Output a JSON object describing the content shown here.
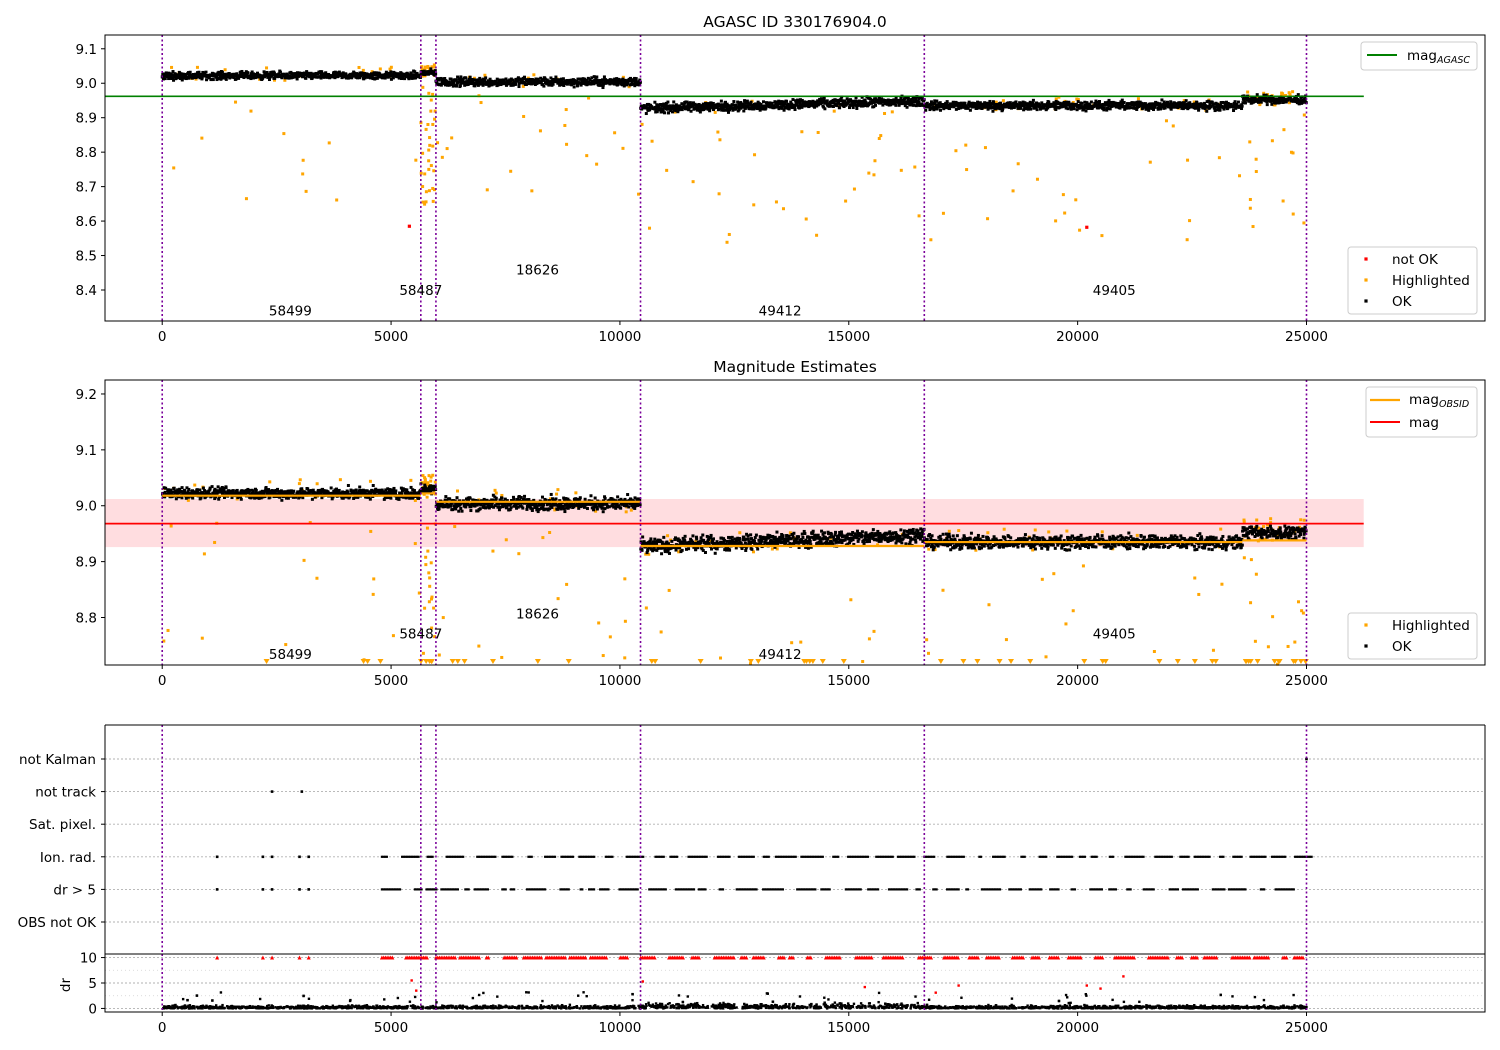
{
  "chart_data": [
    {
      "type": "scatter",
      "title": "AGASC ID 330176904.0",
      "xlim": [
        -1250,
        28900
      ],
      "ylim": [
        8.31,
        9.14
      ],
      "xticks": [
        0,
        5000,
        10000,
        15000,
        20000,
        25000
      ],
      "yticks": [
        8.4,
        8.5,
        8.6,
        8.7,
        8.8,
        8.9,
        9.0,
        9.1
      ],
      "grid": false,
      "reference_line": {
        "name": "mag",
        "subscript": "AGASC",
        "y": 8.962,
        "x_range": [
          -1250,
          26250
        ],
        "color": "#008000"
      },
      "obsid_boundaries": [
        0,
        5650,
        5980,
        10450,
        16650,
        25000
      ],
      "obsid_labels": [
        {
          "text": "58499",
          "x": 2800,
          "y": 8.34
        },
        {
          "text": "58487",
          "x": 5650,
          "y": 8.4
        },
        {
          "text": "18626",
          "x": 8200,
          "y": 8.46
        },
        {
          "text": "49412",
          "x": 13500,
          "y": 8.34
        },
        {
          "text": "49405",
          "x": 20800,
          "y": 8.4
        }
      ],
      "segments": [
        {
          "x": [
            0,
            5650
          ],
          "level": 9.022,
          "spread": 0.009
        },
        {
          "x": [
            5650,
            5980
          ],
          "level": 9.03,
          "spread": 0.008
        },
        {
          "x": [
            5980,
            10450
          ],
          "level": 9.004,
          "spread": 0.011
        },
        {
          "x": [
            10450,
            16650
          ],
          "level": 8.927,
          "spread": 0.012,
          "end_level": 8.948
        },
        {
          "x": [
            16650,
            23600
          ],
          "level": 8.935,
          "spread": 0.011
        },
        {
          "x": [
            23600,
            25000
          ],
          "level": 8.952,
          "spread": 0.01
        }
      ],
      "not_ok_points": [
        [
          5400,
          8.585
        ],
        [
          20200,
          8.582
        ]
      ],
      "legend_top": {
        "position": "top-right",
        "entries": [
          {
            "label": "mag",
            "subscript": "AGASC",
            "color": "#008000"
          }
        ]
      },
      "legend_bottom": {
        "position": "lower-right",
        "entries": [
          {
            "label": "not OK",
            "color": "#ff0000"
          },
          {
            "label": "Highlighted",
            "color": "#ffa500"
          },
          {
            "label": "OK",
            "color": "#000000"
          }
        ]
      }
    },
    {
      "type": "scatter",
      "title": "Magnitude Estimates",
      "xlim": [
        -1250,
        28900
      ],
      "ylim": [
        8.715,
        9.225
      ],
      "xticks": [
        0,
        5000,
        10000,
        15000,
        20000,
        25000
      ],
      "yticks": [
        8.8,
        8.9,
        9.0,
        9.1,
        9.2
      ],
      "grid": false,
      "mag_line": {
        "name": "mag",
        "y": 8.968,
        "band": [
          8.926,
          9.012
        ],
        "x_range": [
          -1250,
          26250
        ],
        "color": "#ff0000"
      },
      "obsid_mags": [
        {
          "x": [
            0,
            5650
          ],
          "y": 9.018
        },
        {
          "x": [
            5650,
            5980
          ],
          "y": 9.022
        },
        {
          "x": [
            5980,
            10450
          ],
          "y": 9.007
        },
        {
          "x": [
            10450,
            16650
          ],
          "y": 8.928
        },
        {
          "x": [
            16650,
            23600
          ],
          "y": 8.935
        },
        {
          "x": [
            23600,
            25000
          ],
          "y": 8.938
        }
      ],
      "obsid_boundaries": [
        0,
        5650,
        5980,
        10450,
        16650,
        25000
      ],
      "obsid_labels": [
        {
          "text": "58499",
          "x": 2800,
          "y": 8.735
        },
        {
          "text": "58487",
          "x": 5650,
          "y": 8.771
        },
        {
          "text": "18626",
          "x": 8200,
          "y": 8.807
        },
        {
          "text": "49412",
          "x": 13500,
          "y": 8.735
        },
        {
          "text": "49405",
          "x": 20800,
          "y": 8.771
        }
      ],
      "legend_top": {
        "position": "top-right",
        "entries": [
          {
            "label": "mag",
            "subscript": "OBSID",
            "color": "#ffa500"
          },
          {
            "label": "mag",
            "color": "#ff0000"
          }
        ]
      },
      "legend_bottom": {
        "position": "lower-right",
        "entries": [
          {
            "label": "Highlighted",
            "color": "#ffa500"
          },
          {
            "label": "OK",
            "color": "#000000"
          }
        ]
      }
    },
    {
      "type": "scatter",
      "title": "",
      "xlim": [
        -1250,
        28900
      ],
      "categories": [
        "not Kalman",
        "not track",
        "Sat. pixel.",
        "Ion. rad.",
        "dr > 5",
        "OBS not OK"
      ],
      "category_points": {
        "not Kalman": [
          25000
        ],
        "not track": [
          2400,
          3050
        ],
        "Sat. pixel.": [],
        "Ion. rad.": [
          1200,
          2200,
          2400,
          3000,
          3200
        ],
        "dr > 5": [
          1200,
          2200,
          2400,
          3000,
          3200
        ],
        "OBS not OK": []
      },
      "ion_density_start": 4800,
      "obsid_boundaries": [
        0,
        5650,
        5980,
        10450,
        16650,
        25000
      ],
      "grid": "dotted horizontal"
    },
    {
      "type": "scatter",
      "title": "",
      "ylabel": "dr",
      "xlim": [
        -1250,
        28900
      ],
      "ylim": [
        -0.7,
        10.7
      ],
      "xticks": [
        0,
        5000,
        10000,
        15000,
        20000,
        25000
      ],
      "yticks": [
        0,
        5,
        10
      ],
      "clip_value": 10,
      "red_outliers": [
        [
          5450,
          5.5
        ],
        [
          5550,
          3.5
        ],
        [
          10500,
          5.3
        ],
        [
          15350,
          4.2
        ],
        [
          17400,
          4.5
        ],
        [
          20200,
          4.5
        ],
        [
          20500,
          3.9
        ],
        [
          21000,
          6.3
        ],
        [
          16900,
          3.1
        ]
      ],
      "obsid_boundaries": [
        0,
        5650,
        5980,
        10450,
        16650,
        25000
      ],
      "grid": "dotted horizontal"
    }
  ],
  "colors": {
    "ok": "#000000",
    "highlighted": "#ffa500",
    "not_ok": "#ff0000",
    "agasc_line": "#008000",
    "mag_line": "#ff0000",
    "band": "#ffdde0",
    "boundary": "#7a0099",
    "obsid_line": "#ffa500"
  }
}
